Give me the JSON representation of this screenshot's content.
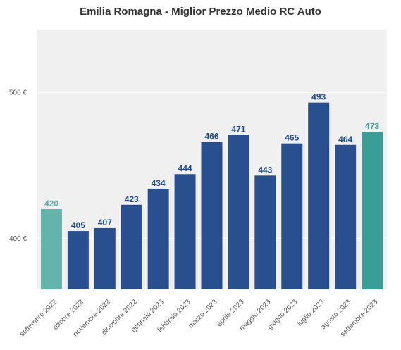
{
  "chart_data": {
    "type": "bar",
    "title": "Emilia Romagna - Miglior Prezzo Medio RC Auto",
    "xlabel": "",
    "ylabel": "",
    "categories": [
      "settembre 2022",
      "ottobre 2022",
      "novembre 2022",
      "dicembre 2022",
      "gennaio 2023",
      "febbraio 2023",
      "marzo 2023",
      "aprile 2023",
      "maggio 2023",
      "giugno 2023",
      "luglio 2023",
      "agosto 2023",
      "settembre 2023"
    ],
    "values": [
      420,
      405,
      407,
      423,
      434,
      444,
      466,
      471,
      443,
      465,
      493,
      464,
      473
    ],
    "value_labels": [
      "420",
      "405",
      "407",
      "423",
      "434",
      "444",
      "466",
      "471",
      "443",
      "465",
      "493",
      "464",
      "473"
    ],
    "y_ticks": [
      400,
      500
    ],
    "y_tick_labels": [
      "400 €",
      "500 €"
    ],
    "ylim": [
      365,
      543
    ],
    "grid": true,
    "colors": {
      "bar": "#2a4f8f",
      "first": "#63b5ac",
      "last": "#3a9e96",
      "label": "#1f4b8f",
      "first_label": "#5aaea5",
      "last_label": "#3a9e96",
      "plot_bg": "#f0f0f0",
      "grid": "#ffffff"
    }
  }
}
